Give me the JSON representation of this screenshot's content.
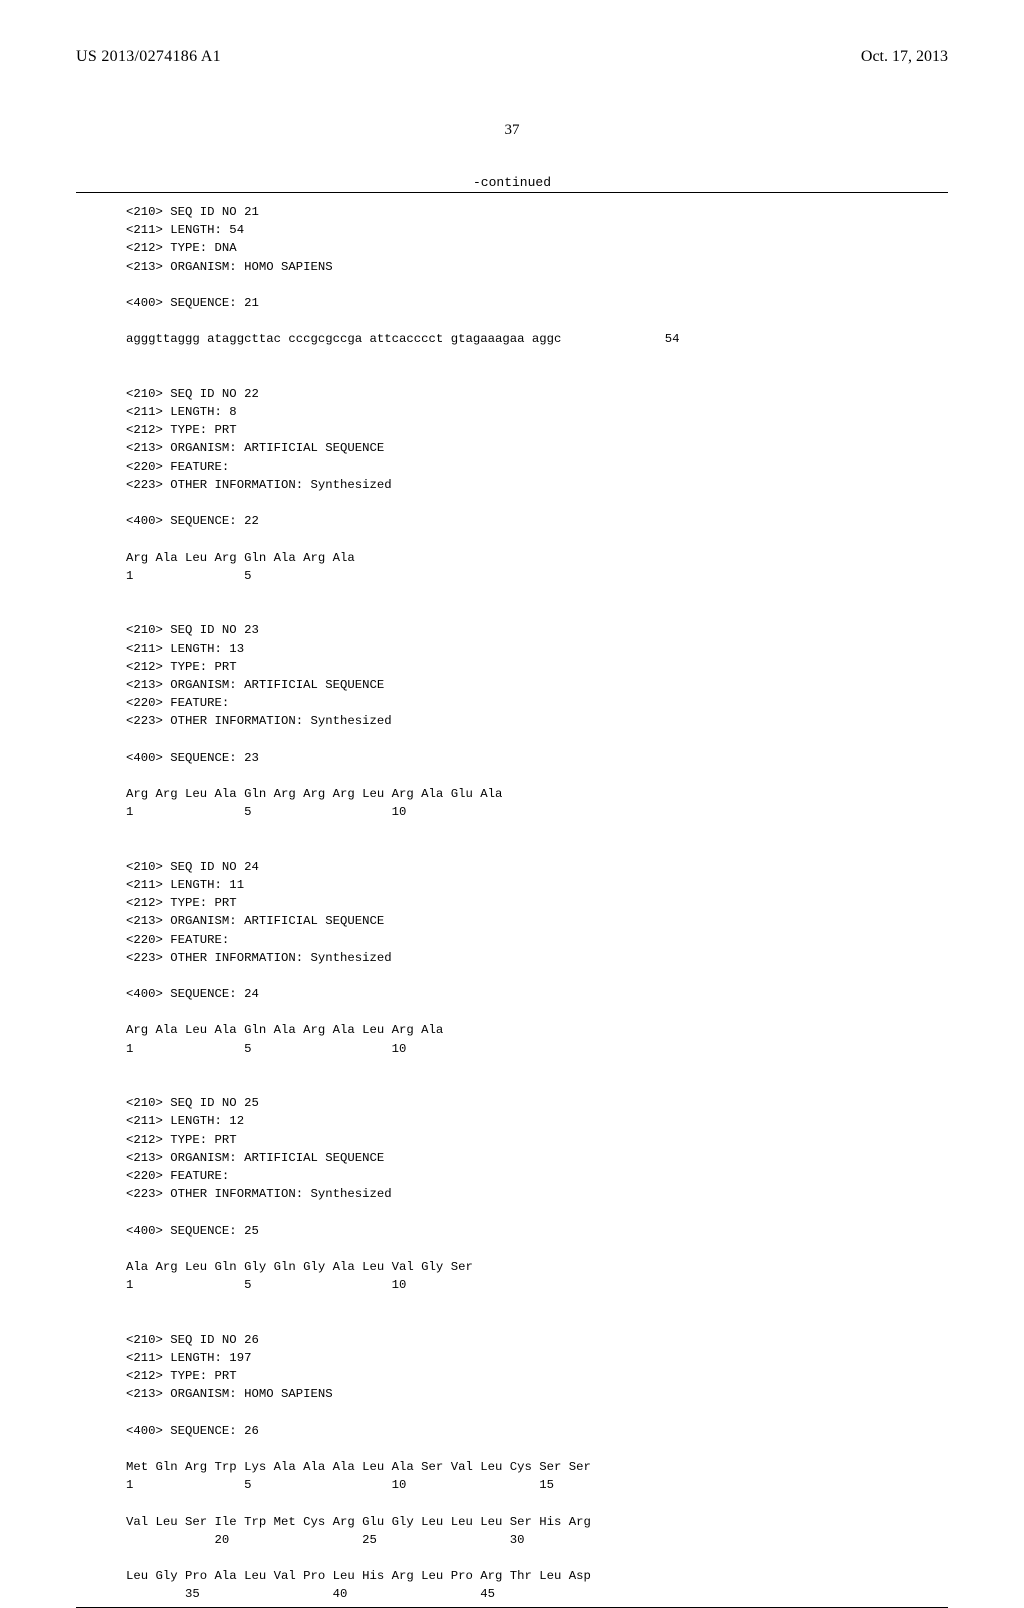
{
  "header": {
    "pub_number": "US 2013/0274186 A1",
    "pub_date": "Oct. 17, 2013"
  },
  "page_number": "37",
  "continued_label": "-continued",
  "colors": {
    "text": "#000000",
    "background": "#ffffff",
    "rule": "#000000"
  },
  "typography": {
    "header_font": "Times New Roman",
    "body_font": "Courier New",
    "header_fontsize_pt": 12,
    "body_fontsize_pt": 9
  },
  "sequences": [
    {
      "id": "21",
      "meta": [
        "<210> SEQ ID NO 21",
        "<211> LENGTH: 54",
        "<212> TYPE: DNA",
        "<213> ORGANISM: HOMO SAPIENS"
      ],
      "seq_label": "<400> SEQUENCE: 21",
      "body": "agggttaggg ataggcttac cccgcgccga attcacccct gtagaaagaa aggc              54",
      "positions": ""
    },
    {
      "id": "22",
      "meta": [
        "<210> SEQ ID NO 22",
        "<211> LENGTH: 8",
        "<212> TYPE: PRT",
        "<213> ORGANISM: ARTIFICIAL SEQUENCE",
        "<220> FEATURE:",
        "<223> OTHER INFORMATION: Synthesized"
      ],
      "seq_label": "<400> SEQUENCE: 22",
      "body": "Arg Ala Leu Arg Gln Ala Arg Ala",
      "positions": "1               5"
    },
    {
      "id": "23",
      "meta": [
        "<210> SEQ ID NO 23",
        "<211> LENGTH: 13",
        "<212> TYPE: PRT",
        "<213> ORGANISM: ARTIFICIAL SEQUENCE",
        "<220> FEATURE:",
        "<223> OTHER INFORMATION: Synthesized"
      ],
      "seq_label": "<400> SEQUENCE: 23",
      "body": "Arg Arg Leu Ala Gln Arg Arg Arg Leu Arg Ala Glu Ala",
      "positions": "1               5                   10"
    },
    {
      "id": "24",
      "meta": [
        "<210> SEQ ID NO 24",
        "<211> LENGTH: 11",
        "<212> TYPE: PRT",
        "<213> ORGANISM: ARTIFICIAL SEQUENCE",
        "<220> FEATURE:",
        "<223> OTHER INFORMATION: Synthesized"
      ],
      "seq_label": "<400> SEQUENCE: 24",
      "body": "Arg Ala Leu Ala Gln Ala Arg Ala Leu Arg Ala",
      "positions": "1               5                   10"
    },
    {
      "id": "25",
      "meta": [
        "<210> SEQ ID NO 25",
        "<211> LENGTH: 12",
        "<212> TYPE: PRT",
        "<213> ORGANISM: ARTIFICIAL SEQUENCE",
        "<220> FEATURE:",
        "<223> OTHER INFORMATION: Synthesized"
      ],
      "seq_label": "<400> SEQUENCE: 25",
      "body": "Ala Arg Leu Gln Gly Gln Gly Ala Leu Val Gly Ser",
      "positions": "1               5                   10"
    },
    {
      "id": "26",
      "meta": [
        "<210> SEQ ID NO 26",
        "<211> LENGTH: 197",
        "<212> TYPE: PRT",
        "<213> ORGANISM: HOMO SAPIENS"
      ],
      "seq_label": "<400> SEQUENCE: 26",
      "body_lines": [
        "Met Gln Arg Trp Lys Ala Ala Ala Leu Ala Ser Val Leu Cys Ser Ser",
        "1               5                   10                  15",
        "",
        "Val Leu Ser Ile Trp Met Cys Arg Glu Gly Leu Leu Leu Ser His Arg",
        "            20                  25                  30",
        "",
        "Leu Gly Pro Ala Leu Val Pro Leu His Arg Leu Pro Arg Thr Leu Asp",
        "        35                  40                  45"
      ],
      "positions": ""
    }
  ]
}
